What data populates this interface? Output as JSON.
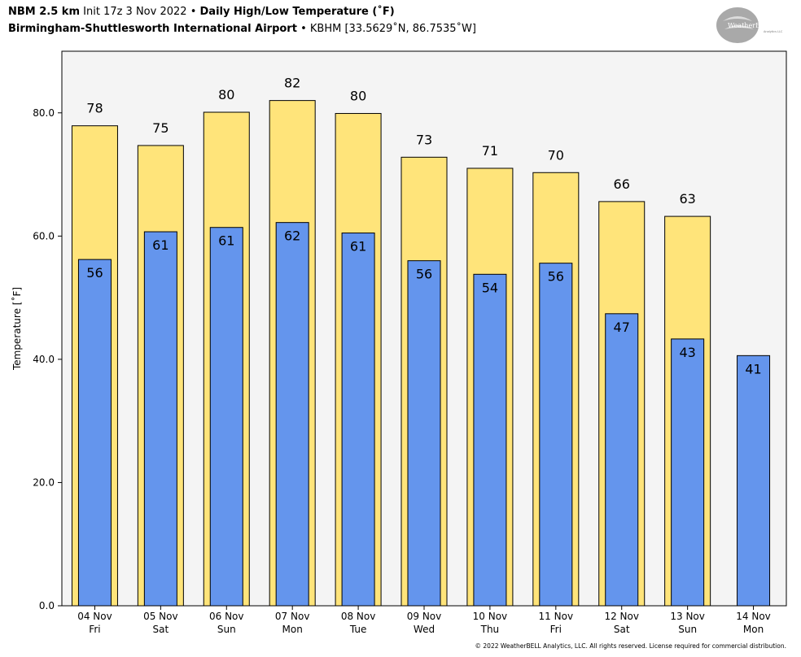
{
  "header": {
    "model": "NBM 2.5 km",
    "init": "Init 17z 3 Nov 2022",
    "sep1": "•",
    "title": "Daily High/Low Temperature (˚F)",
    "station": "Birmingham-Shuttlesworth International Airport",
    "sep2": "•",
    "coords": "KBHM [33.5629˚N, 86.7535˚W]"
  },
  "logo": {
    "text": "WeatherBELL",
    "subtext": "Analytics LLC"
  },
  "footer": "© 2022 WeatherBELL Analytics, LLC. All rights reserved. License required for commercial distribution.",
  "colors": {
    "high": "#ffe47a",
    "low": "#6495ed",
    "plot_bg": "#f4f4f4"
  },
  "chart_data": {
    "type": "bar",
    "ylabel": "Temperature [˚F]",
    "xlabel": "",
    "ylim": [
      0,
      90
    ],
    "yticks": [
      0,
      20,
      40,
      60,
      80
    ],
    "ytick_labels": [
      "0.0",
      "20.0",
      "40.0",
      "60.0",
      "80.0"
    ],
    "categories": [
      {
        "date": "04 Nov",
        "day": "Fri"
      },
      {
        "date": "05 Nov",
        "day": "Sat"
      },
      {
        "date": "06 Nov",
        "day": "Sun"
      },
      {
        "date": "07 Nov",
        "day": "Mon"
      },
      {
        "date": "08 Nov",
        "day": "Tue"
      },
      {
        "date": "09 Nov",
        "day": "Wed"
      },
      {
        "date": "10 Nov",
        "day": "Thu"
      },
      {
        "date": "11 Nov",
        "day": "Fri"
      },
      {
        "date": "12 Nov",
        "day": "Sat"
      },
      {
        "date": "13 Nov",
        "day": "Sun"
      },
      {
        "date": "14 Nov",
        "day": "Mon"
      }
    ],
    "series": [
      {
        "key": "high",
        "values": [
          77.9,
          74.7,
          80.1,
          82.0,
          79.9,
          72.8,
          71.0,
          70.3,
          65.6,
          63.2,
          null
        ],
        "labels": [
          "78",
          "75",
          "80",
          "82",
          "80",
          "73",
          "71",
          "70",
          "66",
          "63",
          ""
        ]
      },
      {
        "key": "low",
        "values": [
          56.2,
          60.7,
          61.4,
          62.2,
          60.5,
          56.0,
          53.8,
          55.6,
          47.4,
          43.3,
          40.6
        ],
        "labels": [
          "56",
          "61",
          "61",
          "62",
          "61",
          "56",
          "54",
          "56",
          "47",
          "43",
          "41"
        ]
      }
    ]
  }
}
